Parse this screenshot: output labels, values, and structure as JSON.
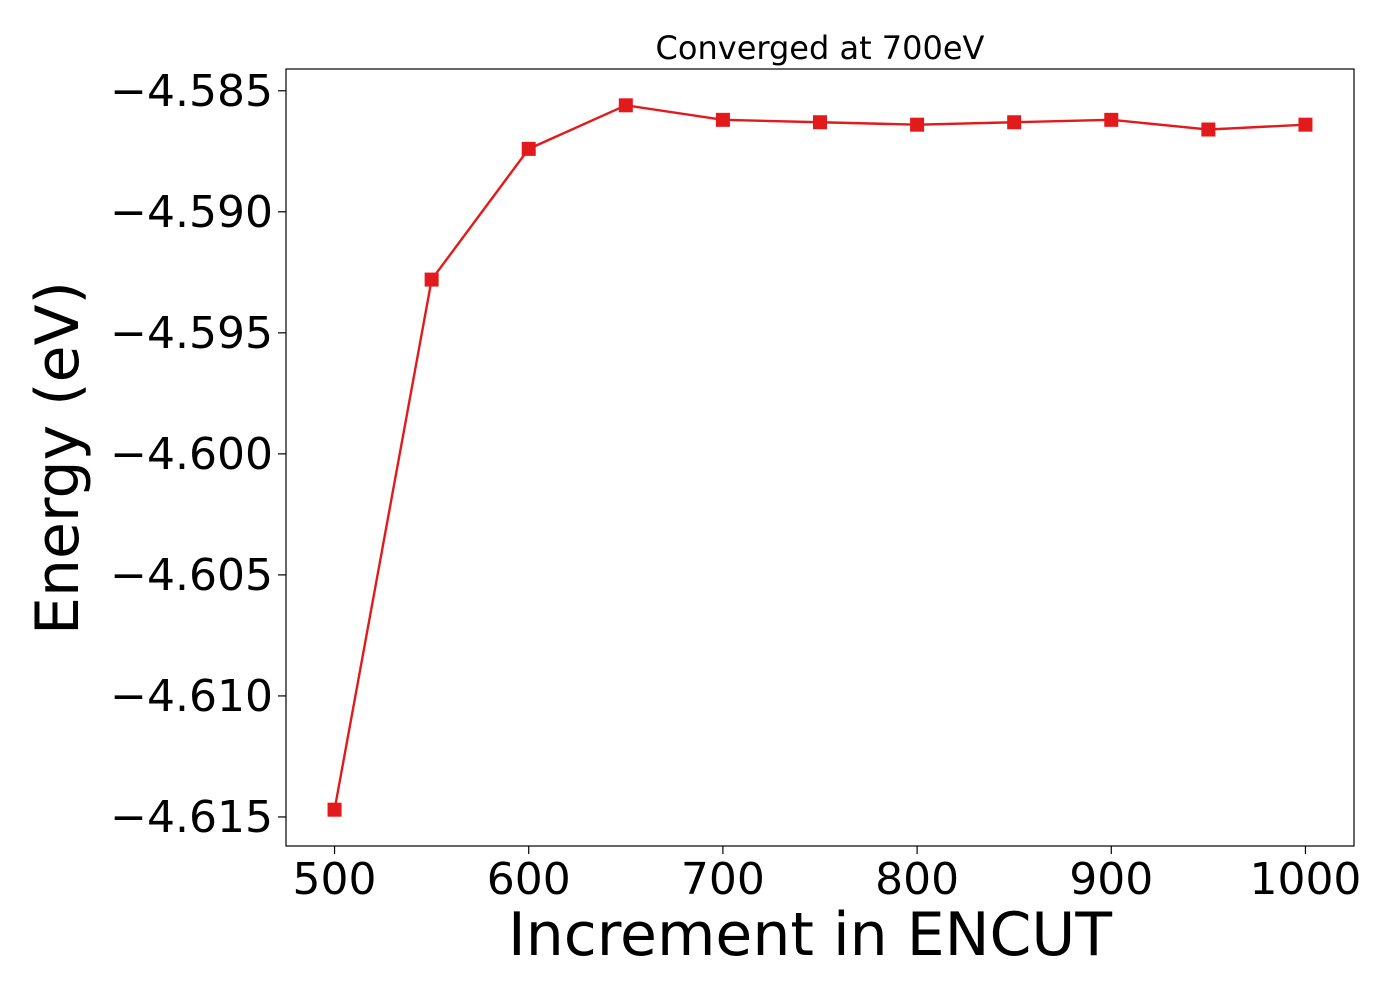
{
  "chart_data": {
    "type": "line",
    "title": "Converged at 700eV",
    "xlabel": "Increment in ENCUT",
    "ylabel": "Energy (eV)",
    "x": [
      500,
      550,
      600,
      650,
      700,
      750,
      800,
      850,
      900,
      950,
      1000
    ],
    "series": [
      {
        "values": [
          -4.6147,
          -4.5928,
          -4.5874,
          -4.5856,
          -4.5862,
          -4.5863,
          -4.5864,
          -4.5863,
          -4.5862,
          -4.5866,
          -4.5864
        ],
        "color": "#e31a1c",
        "marker": "square"
      }
    ],
    "xlim": [
      475,
      1025
    ],
    "ylim": [
      -4.6162,
      -4.5841
    ],
    "xticks": [
      500,
      600,
      700,
      800,
      900,
      1000
    ],
    "xtick_labels": [
      "500",
      "600",
      "700",
      "800",
      "900",
      "1000"
    ],
    "yticks": [
      -4.585,
      -4.59,
      -4.595,
      -4.6,
      -4.605,
      -4.61,
      -4.615
    ],
    "ytick_labels": [
      "−4.585",
      "−4.590",
      "−4.595",
      "−4.600",
      "−4.605",
      "−4.610",
      "−4.615"
    ],
    "grid": false,
    "legend": "none"
  }
}
